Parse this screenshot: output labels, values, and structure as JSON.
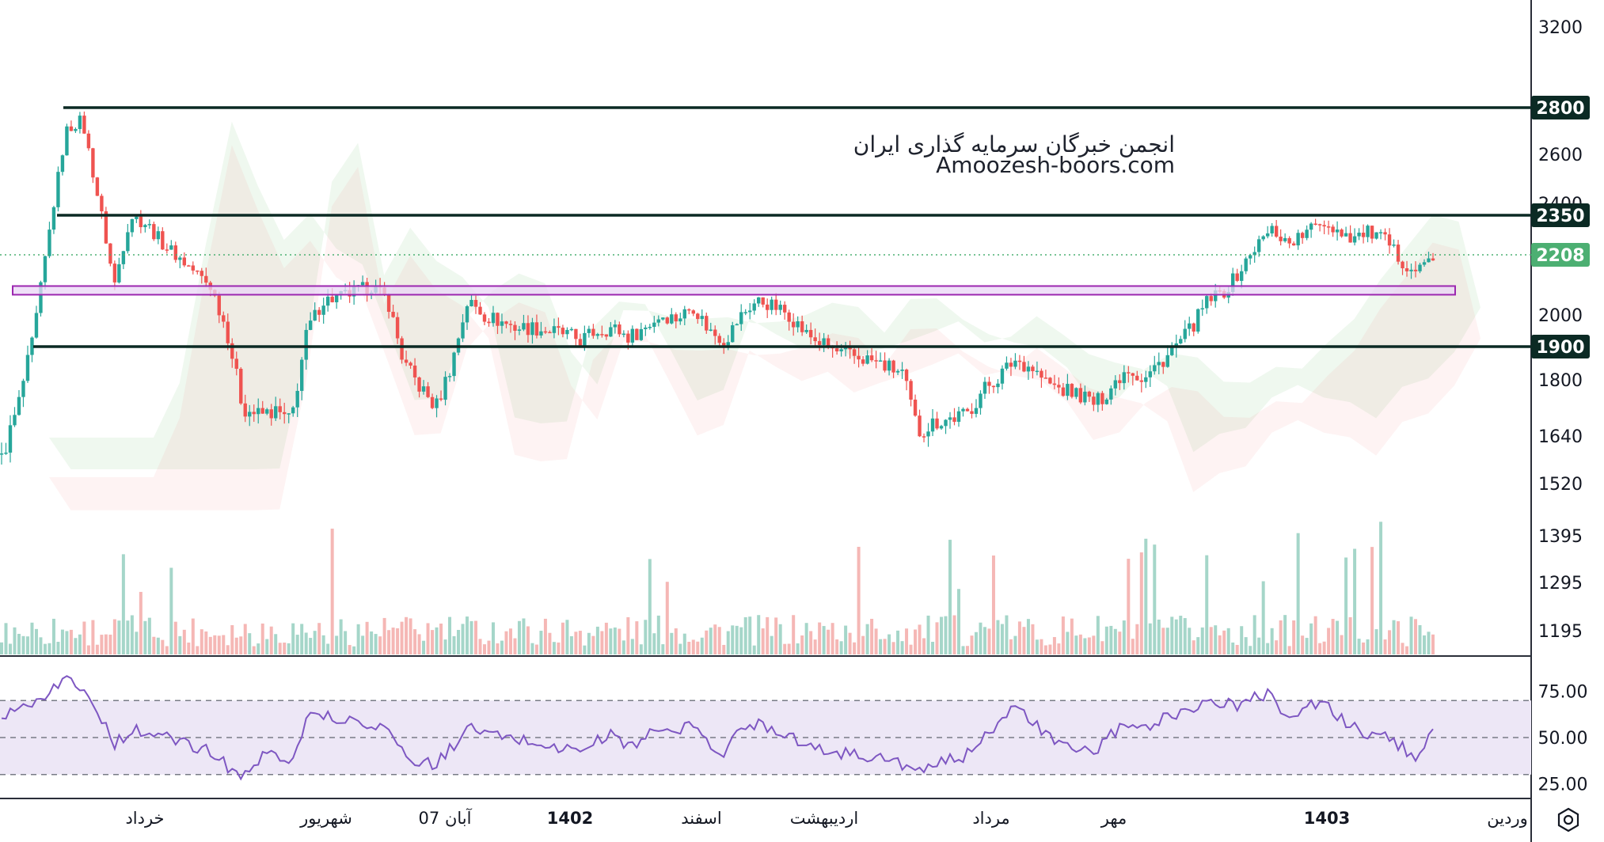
{
  "watermark": {
    "line1": "انجمن خبرگان سرمایه گذاری ایران",
    "line2": "Amoozesh-boors.com"
  },
  "settings_icon": "gear-icon",
  "colors": {
    "up": "#26a69a",
    "down": "#ef5350",
    "level_line": "#0b2a24",
    "last_price": "#4caf72",
    "zone_fill": "#e9d5f5",
    "zone_stroke": "#9c27b0",
    "rsi_line": "#7e57c2",
    "rsi_band": "#ede7f6"
  },
  "chart_data": [
    {
      "type": "candlestick",
      "pane": "price",
      "y_axis_ticks": [
        3200,
        2800,
        2600,
        2400,
        2350,
        2208,
        2000,
        1900,
        1800,
        1640,
        1520,
        1395,
        1295,
        1195
      ],
      "horizontal_levels": [
        2800,
        2350,
        1900
      ],
      "last_price": 2208,
      "support_zone": [
        2070,
        2100
      ],
      "x_axis_labels": [
        "خرداد",
        "شهریور",
        "07 آبان",
        "1402",
        "اسفند",
        "اردیبهشت",
        "مرداد",
        "مهر",
        "1403",
        "وردین"
      ],
      "bold_x_labels": [
        "1402",
        "1403"
      ],
      "series": [
        {
          "name": "price",
          "approx_close_path": [
            1580,
            1720,
            1930,
            2300,
            2700,
            2750,
            2420,
            2100,
            2350,
            2320,
            2250,
            2200,
            2150,
            2100,
            1950,
            1720,
            1700,
            1710,
            1680,
            1950,
            2050,
            2060,
            2080,
            2100,
            2050,
            1850,
            1780,
            1720,
            1850,
            2050,
            2000,
            1980,
            1960,
            1960,
            1950,
            1940,
            1920,
            1950,
            1960,
            1930,
            1960,
            2000,
            1990,
            2030,
            1950,
            1920,
            2000,
            2050,
            2030,
            2000,
            1940,
            1910,
            1880,
            1870,
            1860,
            1840,
            1820,
            1650,
            1680,
            1690,
            1700,
            1770,
            1810,
            1860,
            1840,
            1790,
            1770,
            1760,
            1730,
            1780,
            1840,
            1800,
            1850,
            1900,
            1960,
            2050,
            2080,
            2150,
            2240,
            2300,
            2250,
            2280,
            2330,
            2300,
            2270,
            2290,
            2260,
            2190,
            2150,
            2208
          ]
        }
      ]
    },
    {
      "type": "line",
      "pane": "rsi",
      "y_axis_ticks": [
        75,
        50,
        25
      ],
      "bands": [
        70,
        50,
        30
      ],
      "series": [
        {
          "name": "rsi",
          "values": [
            62,
            67,
            70,
            75,
            82,
            76,
            65,
            45,
            55,
            52,
            50,
            48,
            45,
            42,
            35,
            28,
            38,
            42,
            38,
            60,
            63,
            60,
            58,
            58,
            55,
            40,
            37,
            35,
            45,
            55,
            53,
            50,
            49,
            48,
            45,
            44,
            43,
            48,
            52,
            45,
            50,
            55,
            52,
            58,
            45,
            42,
            55,
            58,
            55,
            52,
            45,
            43,
            42,
            41,
            40,
            38,
            36,
            30,
            35,
            38,
            40,
            52,
            58,
            66,
            60,
            50,
            45,
            44,
            42,
            52,
            56,
            54,
            60,
            63,
            66,
            70,
            68,
            67,
            72,
            74,
            60,
            65,
            70,
            62,
            55,
            52,
            50,
            45,
            40,
            52
          ]
        }
      ]
    }
  ]
}
